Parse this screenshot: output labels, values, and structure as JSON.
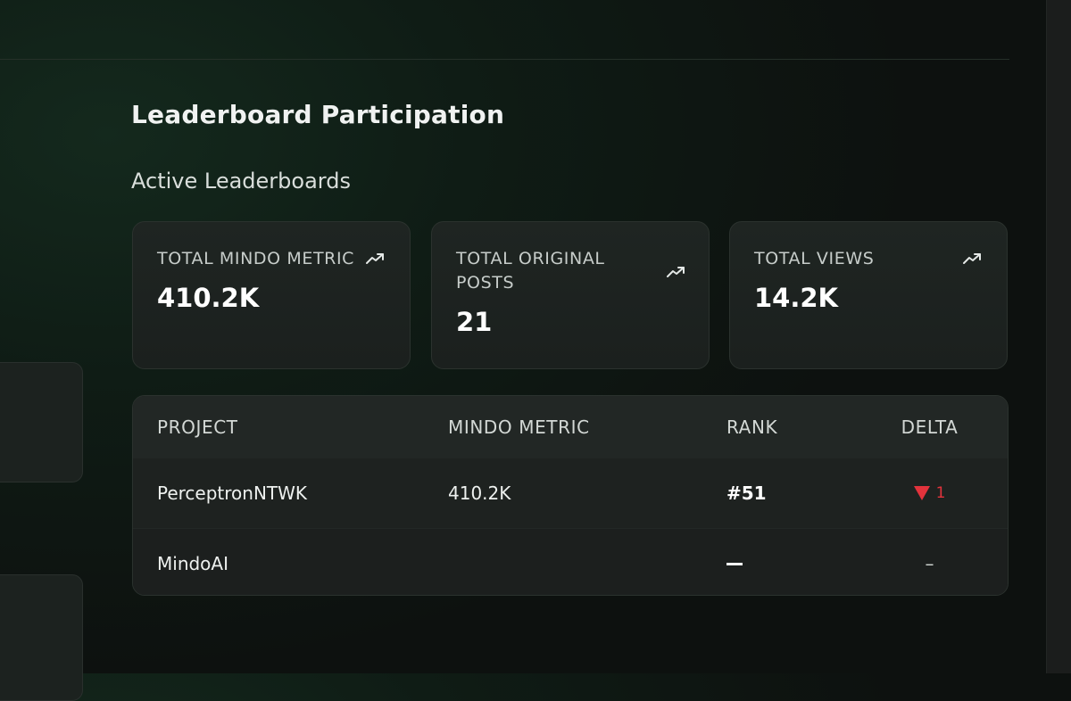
{
  "page": {
    "title": "Leaderboard Participation",
    "section_title": "Active Leaderboards"
  },
  "stats": [
    {
      "label": "TOTAL MINDO METRIC",
      "value": "410.2K",
      "icon": "trend-up-icon"
    },
    {
      "label": "TOTAL ORIGINAL POSTS",
      "value": "21",
      "icon": "trend-up-icon"
    },
    {
      "label": "TOTAL VIEWS",
      "value": "14.2K",
      "icon": "trend-up-icon"
    }
  ],
  "table": {
    "columns": [
      "PROJECT",
      "MINDO METRIC",
      "RANK",
      "DELTA"
    ],
    "rows": [
      {
        "project": "PerceptronNTWK",
        "metric": "410.2K",
        "rank": "#51",
        "delta": "1",
        "delta_direction": "down"
      },
      {
        "project": "MindoAI",
        "metric": "",
        "rank": "—",
        "delta": "–",
        "delta_direction": "none"
      }
    ]
  },
  "colors": {
    "accent_down": "#e2333c",
    "background": "#0f1c15",
    "card": "#1f2522"
  }
}
